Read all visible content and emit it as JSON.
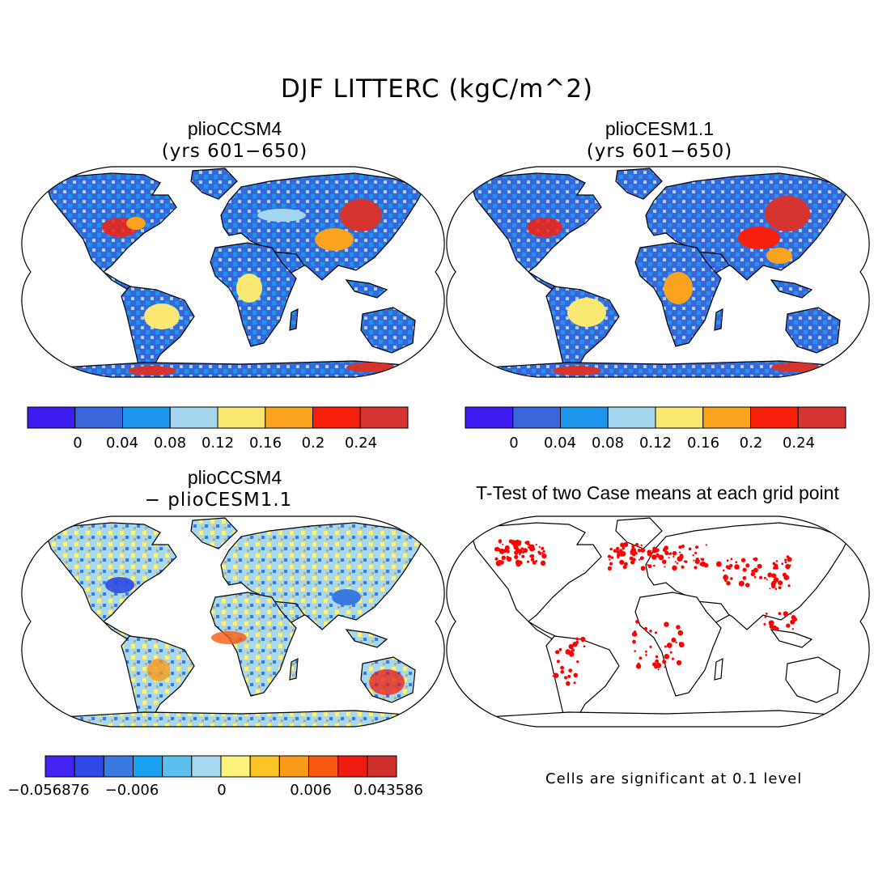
{
  "main_title": "DJF LITTERC (kgC/m^2)",
  "panels": [
    {
      "id": "tl",
      "title": "plioCCSM4",
      "subtitle": "(yrs 601−650)",
      "style": "abs"
    },
    {
      "id": "tr",
      "title": "plioCESM1.1",
      "subtitle": "(yrs 601−650)",
      "style": "abs"
    },
    {
      "id": "bl",
      "title": "plioCCSM4",
      "subtitle": "− plioCESM1.1",
      "style": "diff"
    },
    {
      "id": "br",
      "title": "T-Test of two Case means at each grid point",
      "subtitle": "",
      "style": "ttest"
    }
  ],
  "colorbar_abs": {
    "colors": [
      "#3c1cf0",
      "#3a66dc",
      "#1e96ee",
      "#a4d6f0",
      "#fae872",
      "#fba21e",
      "#f6200d",
      "#d6342e"
    ],
    "ticks": [
      "0",
      "0.04",
      "0.08",
      "0.12",
      "0.16",
      "0.2",
      "0.24"
    ]
  },
  "colorbar_diff": {
    "colors": [
      "#4322f2",
      "#2f48e6",
      "#3a7ae0",
      "#1aa2f0",
      "#5cc0ee",
      "#a6d8f0",
      "#fcf27c",
      "#fdc42a",
      "#fb9a18",
      "#f85a12",
      "#ee1b10",
      "#d0302c"
    ],
    "ticks": [
      "−0.056876",
      "−0.006",
      "0",
      "0.006",
      "0.043586"
    ]
  },
  "ttest_note": "Cells are significant at 0.1 level",
  "colors": {
    "ttest_significant": "#ff0000",
    "coast": "#000000"
  }
}
